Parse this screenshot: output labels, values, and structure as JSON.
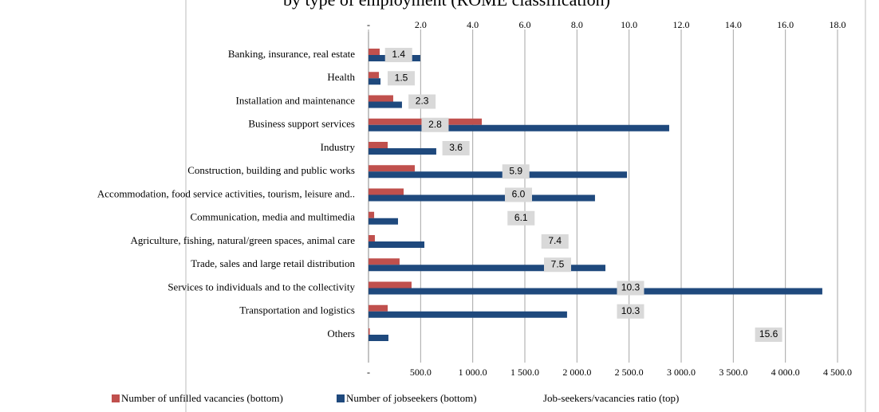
{
  "chart_data": {
    "type": "bar",
    "orientation": "horizontal",
    "title": "by type of employment (ROME classification)",
    "categories": [
      "Banking, insurance, real estate",
      "Health",
      "Installation and maintenance",
      "Business support services",
      "Industry",
      "Construction, building and public works",
      "Accommodation, food service activities, tourism, leisure and..",
      "Communication, media and multimedia",
      "Agriculture, fishing, natural/green spaces, animal care",
      "Trade, sales and large retail distribution",
      "Services to individuals and to the collectivity",
      "Transportation and logistics",
      "Others"
    ],
    "series": [
      {
        "name": "Number of unfilled vacancies (bottom)",
        "color": "#c0504d",
        "values": [
          107,
          100,
          237,
          1087,
          184,
          444,
          337,
          54,
          61,
          298,
          413,
          184,
          12
        ]
      },
      {
        "name": "Number of jobseekers (bottom)",
        "color": "#1f497d",
        "values": [
          497,
          115,
          321,
          2885,
          650,
          2480,
          2173,
          283,
          536,
          2273,
          4354,
          1905,
          191
        ]
      },
      {
        "name": "Job-seekers/vacancies ratio (top)",
        "color": "#d9d9d9",
        "axis": "x2",
        "values": [
          1.4,
          1.5,
          2.3,
          2.8,
          3.6,
          5.9,
          6.0,
          6.1,
          7.4,
          7.5,
          10.3,
          10.3,
          15.6
        ],
        "value_labels": [
          "1.4",
          "1.5",
          "2.3",
          "2.8",
          "3.6",
          "5.9",
          "6.0",
          "6.1",
          "7.4",
          "7.5",
          "10.3",
          "10.3",
          "15.6"
        ]
      }
    ],
    "xlim": [
      0,
      4500
    ],
    "xticks": [
      {
        "value": 0,
        "label": "-"
      },
      {
        "value": 500,
        "label": "500.0"
      },
      {
        "value": 1000,
        "label": "1 000.0"
      },
      {
        "value": 1500,
        "label": "1 500.0"
      },
      {
        "value": 2000,
        "label": "2 000.0"
      },
      {
        "value": 2500,
        "label": "2 500.0"
      },
      {
        "value": 3000,
        "label": "3 000.0"
      },
      {
        "value": 3500,
        "label": "3 500.0"
      },
      {
        "value": 4000,
        "label": "4 000.0"
      },
      {
        "value": 4500,
        "label": "4 500.0"
      }
    ],
    "x2lim": [
      0,
      18
    ],
    "x2ticks": [
      {
        "value": 0,
        "label": "-"
      },
      {
        "value": 2,
        "label": "2.0"
      },
      {
        "value": 4,
        "label": "4.0"
      },
      {
        "value": 6,
        "label": "6.0"
      },
      {
        "value": 8,
        "label": "8.0"
      },
      {
        "value": 10,
        "label": "10.0"
      },
      {
        "value": 12,
        "label": "12.0"
      },
      {
        "value": 14,
        "label": "14.0"
      },
      {
        "value": 16,
        "label": "16.0"
      },
      {
        "value": 18,
        "label": "18.0"
      }
    ],
    "grid": true,
    "legend": "bottom"
  }
}
